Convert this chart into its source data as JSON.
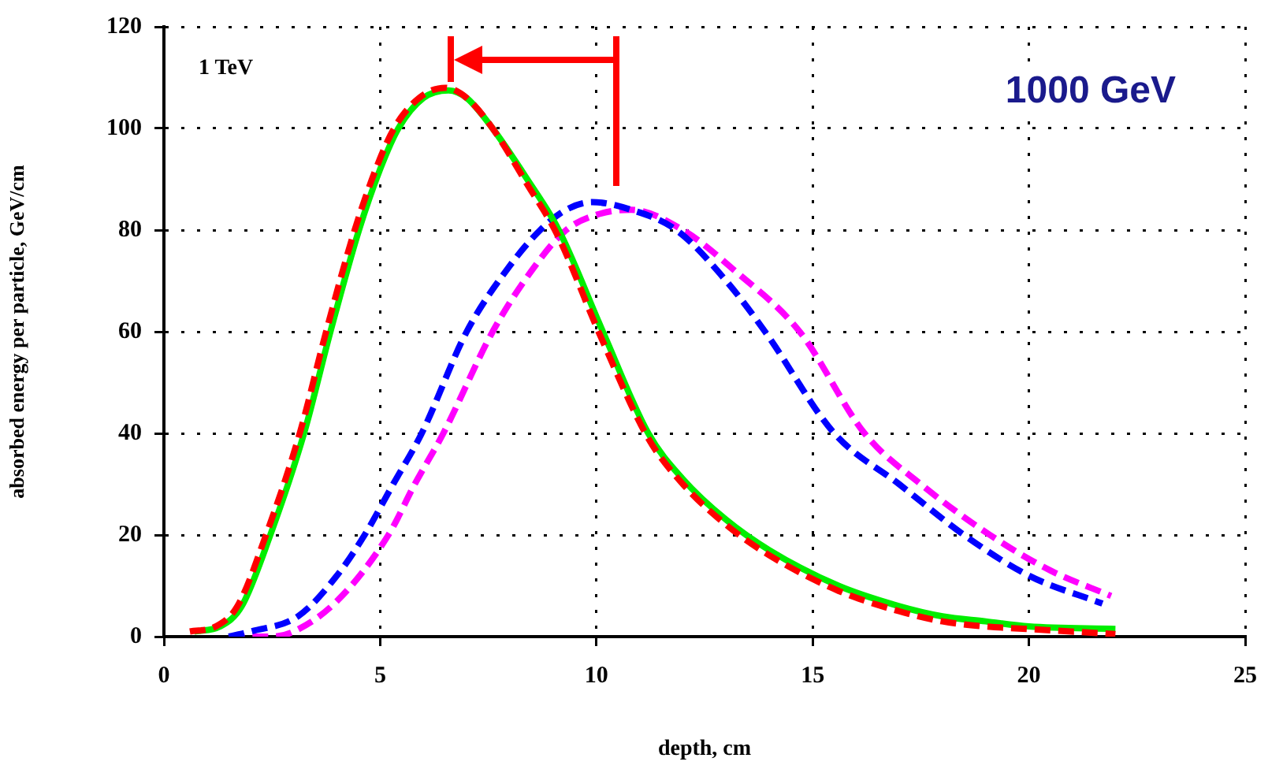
{
  "chart_data": {
    "type": "line",
    "xlabel": "depth, cm",
    "ylabel": "absorbed energy per particle, GeV/cm",
    "annotations": [
      "1 TeV",
      "1000 GeV"
    ],
    "xlim": [
      0,
      25
    ],
    "xticks": [
      0,
      5,
      10,
      15,
      20,
      25
    ],
    "ylim": [
      0,
      120
    ],
    "yticks": [
      0,
      20,
      40,
      60,
      80,
      100,
      120
    ],
    "grid": true,
    "legend": false,
    "marker": "none",
    "series": [
      {
        "color": "#ff0000",
        "line_style": "dashed",
        "x": [
          0.6,
          1.2,
          1.7,
          2.36,
          3.14,
          3.75,
          4.41,
          4.9,
          5.32,
          5.9,
          6.5,
          7,
          7.6,
          8.4,
          9.1,
          10.1,
          11.2,
          12,
          13,
          14,
          15.6,
          17,
          18,
          19,
          20,
          22
        ],
        "values": [
          1,
          2,
          6,
          20,
          40,
          60,
          80,
          92,
          100,
          106,
          108,
          106,
          100,
          89,
          79,
          59,
          39,
          30,
          22,
          16,
          9,
          5,
          3,
          2,
          1.5,
          0.5
        ]
      },
      {
        "color": "#00ee00",
        "line_style": "solid",
        "x": [
          0.7,
          1.3,
          1.8,
          2.46,
          3.24,
          3.85,
          4.51,
          5,
          5.42,
          6,
          6.58,
          7,
          7.6,
          8.4,
          9.13,
          10.15,
          11.2,
          12,
          13,
          14,
          15.6,
          17,
          18,
          19,
          20,
          22
        ],
        "values": [
          1,
          2,
          6,
          20,
          40,
          60,
          80,
          92,
          100,
          106,
          107.5,
          106,
          100,
          90,
          80,
          60,
          40,
          31,
          23,
          17,
          10,
          6,
          4,
          3,
          2,
          1.5
        ]
      },
      {
        "color": "#0000ff",
        "line_style": "dashed",
        "x": [
          1.5,
          2,
          3.1,
          4,
          4.64,
          5.3,
          5.96,
          7,
          8,
          8.7,
          9.3,
          9.9,
          10.8,
          11.85,
          13,
          13.9,
          15.5,
          17,
          18.5,
          20,
          21.7
        ],
        "values": [
          0,
          1,
          4,
          12,
          20,
          30,
          40,
          60,
          73,
          80,
          84,
          85.5,
          84,
          80,
          70,
          60,
          40,
          30,
          20,
          12,
          6.5
        ]
      },
      {
        "color": "#ff00ff",
        "line_style": "dashed",
        "x": [
          1.5,
          2.5,
          3,
          4,
          5.19,
          5.8,
          6.46,
          7.6,
          8.5,
          9.3,
          10,
          10.8,
          12,
          13.2,
          14.7,
          16.2,
          17.5,
          19.1,
          20.5,
          21.9
        ],
        "values": [
          0,
          0,
          1,
          7,
          20,
          30,
          40,
          60,
          72,
          80,
          83,
          84,
          80,
          72,
          60,
          40,
          30,
          20,
          13,
          8
        ]
      }
    ]
  }
}
